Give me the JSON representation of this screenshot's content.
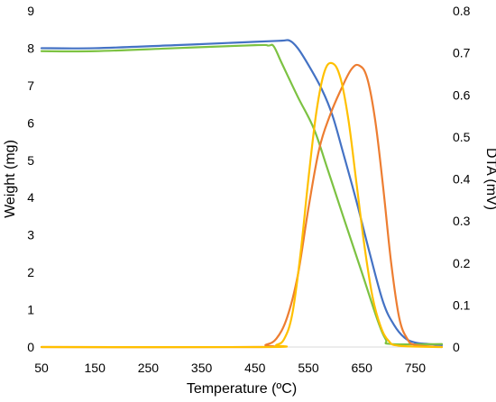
{
  "chart_data": {
    "type": "line",
    "title": "",
    "xlabel": "Temperature (ºC)",
    "ylabel_left": "Weight (mg)",
    "ylabel_right": "DTA (mV)",
    "xlim": [
      50,
      800
    ],
    "ylim_left": [
      0,
      9
    ],
    "ylim_right": [
      0,
      0.8
    ],
    "x_ticks": [
      50,
      150,
      250,
      350,
      450,
      550,
      650,
      750
    ],
    "y_ticks_left": [
      0,
      1,
      2,
      3,
      4,
      5,
      6,
      7,
      8,
      9
    ],
    "y_ticks_right": [
      0,
      0.1,
      0.2,
      0.3,
      0.4,
      0.5,
      0.6,
      0.7,
      0.8
    ],
    "y_tick_labels_right": [
      "0",
      "0.1",
      "0.2",
      "0.3",
      "0.4",
      "0.5",
      "0.6",
      "0.7",
      "0.8"
    ],
    "grid": false,
    "legend": "none",
    "series": [
      {
        "axis": "left",
        "color": "#4472C4",
        "points": [
          [
            50,
            8.0
          ],
          [
            150,
            8.0
          ],
          [
            300,
            8.08
          ],
          [
            450,
            8.17
          ],
          [
            500,
            8.2
          ],
          [
            515,
            8.2
          ],
          [
            530,
            8.0
          ],
          [
            550,
            7.55
          ],
          [
            575,
            6.9
          ],
          [
            595,
            6.2
          ],
          [
            615,
            5.2
          ],
          [
            640,
            3.9
          ],
          [
            665,
            2.5
          ],
          [
            690,
            1.2
          ],
          [
            710,
            0.6
          ],
          [
            730,
            0.25
          ],
          [
            750,
            0.12
          ],
          [
            775,
            0.08
          ],
          [
            800,
            0.05
          ]
        ]
      },
      {
        "axis": "left",
        "color": "#7CC242",
        "points": [
          [
            50,
            7.92
          ],
          [
            150,
            7.92
          ],
          [
            300,
            8.0
          ],
          [
            450,
            8.08
          ],
          [
            475,
            8.07
          ],
          [
            485,
            8.05
          ],
          [
            500,
            7.6
          ],
          [
            530,
            6.7
          ],
          [
            560,
            5.85
          ],
          [
            585,
            4.8
          ],
          [
            615,
            3.5
          ],
          [
            650,
            2.0
          ],
          [
            680,
            0.7
          ],
          [
            695,
            0.2
          ],
          [
            705,
            0.08
          ],
          [
            800,
            0.08
          ]
        ]
      },
      {
        "axis": "right",
        "color": "#ED7D31",
        "points": [
          [
            50,
            0.0
          ],
          [
            450,
            0.0
          ],
          [
            470,
            0.005
          ],
          [
            490,
            0.02
          ],
          [
            510,
            0.07
          ],
          [
            530,
            0.17
          ],
          [
            550,
            0.33
          ],
          [
            570,
            0.47
          ],
          [
            590,
            0.55
          ],
          [
            610,
            0.61
          ],
          [
            630,
            0.66
          ],
          [
            645,
            0.67
          ],
          [
            660,
            0.64
          ],
          [
            675,
            0.54
          ],
          [
            690,
            0.38
          ],
          [
            705,
            0.2
          ],
          [
            720,
            0.07
          ],
          [
            735,
            0.02
          ],
          [
            750,
            0.005
          ],
          [
            800,
            0.0
          ]
        ]
      },
      {
        "axis": "right",
        "color": "#FFC000",
        "points": [
          [
            50,
            0.0
          ],
          [
            470,
            0.0
          ],
          [
            490,
            0.005
          ],
          [
            505,
            0.02
          ],
          [
            520,
            0.08
          ],
          [
            535,
            0.22
          ],
          [
            550,
            0.4
          ],
          [
            565,
            0.56
          ],
          [
            580,
            0.655
          ],
          [
            595,
            0.675
          ],
          [
            610,
            0.64
          ],
          [
            625,
            0.54
          ],
          [
            640,
            0.39
          ],
          [
            655,
            0.24
          ],
          [
            670,
            0.12
          ],
          [
            685,
            0.05
          ],
          [
            700,
            0.015
          ],
          [
            720,
            0.003
          ],
          [
            800,
            0.0
          ]
        ]
      }
    ]
  }
}
